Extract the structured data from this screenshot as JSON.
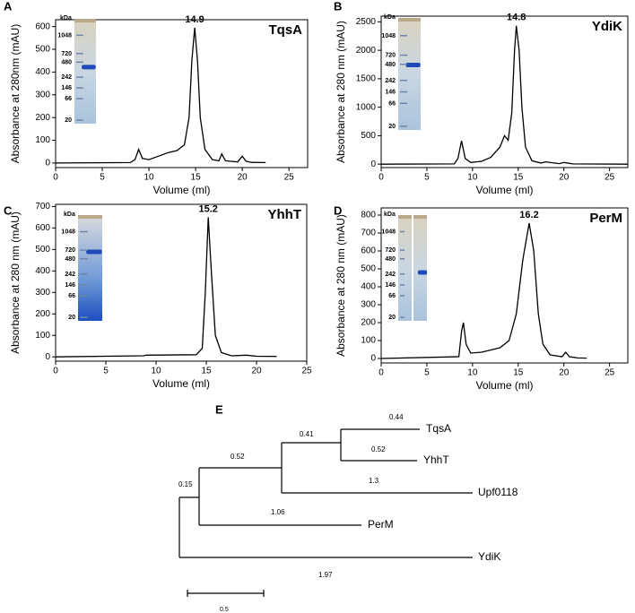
{
  "chart_data": [
    {
      "panel": "A",
      "type": "line",
      "name": "TqsA",
      "peak_x": 14.9,
      "xlabel": "Volume (ml)",
      "ylabel": "Absorbance at 280nm (mAU)",
      "color": "#000000",
      "x": [
        0,
        8,
        8.5,
        8.9,
        9.3,
        10,
        11,
        12,
        13,
        13.8,
        14.3,
        14.6,
        14.9,
        15.2,
        15.5,
        16,
        16.8,
        17.5,
        17.8,
        18.2,
        19.5,
        20,
        20.4,
        21,
        22.5
      ],
      "values": [
        0,
        2,
        15,
        60,
        20,
        15,
        30,
        45,
        55,
        80,
        200,
        450,
        595,
        450,
        200,
        60,
        15,
        10,
        40,
        10,
        5,
        30,
        8,
        3,
        2
      ],
      "xlim": [
        0,
        27
      ],
      "xticks": [
        0,
        5,
        10,
        15,
        20,
        25
      ],
      "ylim": [
        -20,
        630
      ],
      "yticks": [
        0,
        100,
        200,
        300,
        400,
        500,
        600
      ],
      "gel": {
        "unit": "kDa",
        "markers": [
          1048,
          720,
          480,
          242,
          146,
          66,
          20
        ]
      }
    },
    {
      "panel": "B",
      "type": "line",
      "name": "YdiK",
      "peak_x": 14.8,
      "xlabel": "Volume (ml)",
      "ylabel": "Absorbance at 280 nm (mAU)",
      "color": "#000000",
      "x": [
        0,
        8,
        8.4,
        8.8,
        9.2,
        9.8,
        11,
        12,
        13,
        13.5,
        13.9,
        14.3,
        14.6,
        14.8,
        15.1,
        15.4,
        15.8,
        16.5,
        17.5,
        18,
        19.5,
        20,
        21,
        27
      ],
      "values": [
        0,
        5,
        100,
        410,
        100,
        30,
        50,
        120,
        300,
        500,
        420,
        900,
        2000,
        2430,
        2000,
        1000,
        300,
        60,
        20,
        40,
        10,
        30,
        5,
        0
      ],
      "xlim": [
        0,
        27
      ],
      "xticks": [
        0,
        5,
        10,
        15,
        20,
        25
      ],
      "ylim": [
        -60,
        2600
      ],
      "yticks": [
        0,
        500,
        1000,
        1500,
        2000,
        2500
      ],
      "gel": {
        "unit": "kDa",
        "markers": [
          1048,
          720,
          480,
          242,
          146,
          66,
          20
        ]
      }
    },
    {
      "panel": "C",
      "type": "line",
      "name": "YhhT",
      "peak_x": 15.2,
      "xlabel": "Volume (ml)",
      "ylabel": "Absorbance at 280 nm (mAU)",
      "color": "#000000",
      "x": [
        0,
        8.8,
        9,
        14,
        14.6,
        14.9,
        15.2,
        15.5,
        15.9,
        16.5,
        17.5,
        19,
        20,
        22
      ],
      "values": [
        0,
        5,
        8,
        10,
        40,
        300,
        650,
        400,
        100,
        20,
        5,
        8,
        3,
        2
      ],
      "xlim": [
        0,
        25
      ],
      "xticks": [
        0,
        5,
        10,
        15,
        20,
        25
      ],
      "ylim": [
        -20,
        710
      ],
      "yticks": [
        0,
        100,
        200,
        300,
        400,
        500,
        600,
        700
      ],
      "gel": {
        "unit": "kDa",
        "markers": [
          1048,
          720,
          480,
          242,
          146,
          66,
          20
        ]
      }
    },
    {
      "panel": "D",
      "type": "line",
      "name": "PerM",
      "peak_x": 16.2,
      "xlabel": "Volume (ml)",
      "ylabel": "Absorbance at 280 nm (mAU)",
      "color": "#000000",
      "x": [
        0,
        8.5,
        8.8,
        9,
        9.3,
        9.8,
        11,
        13,
        14,
        14.8,
        15.5,
        16.2,
        16.7,
        17.2,
        17.7,
        18.5,
        19.8,
        20.2,
        20.6,
        21.5,
        22.5
      ],
      "values": [
        0,
        10,
        150,
        200,
        80,
        30,
        35,
        60,
        100,
        250,
        550,
        755,
        600,
        250,
        80,
        20,
        10,
        35,
        10,
        3,
        2
      ],
      "xlim": [
        0,
        27
      ],
      "xticks": [
        0,
        5,
        10,
        15,
        20,
        25
      ],
      "ylim": [
        -25,
        840
      ],
      "yticks": [
        0,
        100,
        200,
        300,
        400,
        500,
        600,
        700,
        800
      ],
      "gel": {
        "unit": "kDa",
        "markers": [
          1048,
          720,
          480,
          242,
          146,
          66,
          20
        ]
      }
    }
  ],
  "tree": {
    "panel": "E",
    "leaves": [
      "TqsA",
      "YhhT",
      "Upf0118",
      "PerM",
      "YdiK"
    ],
    "branch_lengths": [
      0.44,
      0.52,
      0.41,
      0.52,
      1.3,
      0.15,
      1.06,
      1.97
    ],
    "scale": 0.5
  }
}
